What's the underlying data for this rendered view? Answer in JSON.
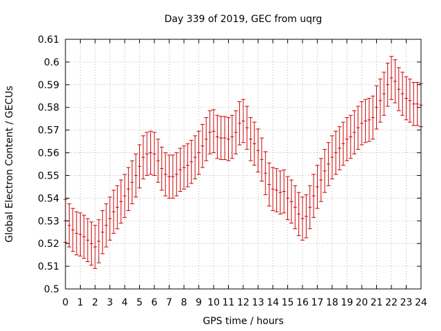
{
  "chart_data": {
    "type": "scatter",
    "title": "Day 339 of 2019, GEC from uqrg",
    "xlabel": "GPS time / hours",
    "ylabel": "Global Electron Content / GECUs",
    "xlim": [
      0,
      24
    ],
    "ylim": [
      0.5,
      0.61
    ],
    "x_ticks": [
      "0",
      "1",
      "2",
      "3",
      "4",
      "5",
      "6",
      "7",
      "8",
      "9",
      "10",
      "11",
      "12",
      "13",
      "14",
      "15",
      "16",
      "17",
      "18",
      "19",
      "20",
      "21",
      "22",
      "23",
      "24"
    ],
    "y_ticks": [
      "0.5",
      "0.51",
      "0.52",
      "0.53",
      "0.54",
      "0.55",
      "0.56",
      "0.57",
      "0.58",
      "0.59",
      "0.6",
      "0.61"
    ],
    "grid": true,
    "error_bar_color": "#cc0000",
    "series": [
      {
        "error": 0.0095,
        "points": [
          [
            0.0,
            0.53
          ],
          [
            0.25,
            0.528
          ],
          [
            0.5,
            0.526
          ],
          [
            0.75,
            0.5245
          ],
          [
            1.0,
            0.524
          ],
          [
            1.25,
            0.523
          ],
          [
            1.5,
            0.5215
          ],
          [
            1.75,
            0.52
          ],
          [
            2.0,
            0.5185
          ],
          [
            2.25,
            0.521
          ],
          [
            2.5,
            0.525
          ],
          [
            2.75,
            0.528
          ],
          [
            3.0,
            0.531
          ],
          [
            3.25,
            0.534
          ],
          [
            3.5,
            0.536
          ],
          [
            3.75,
            0.5385
          ],
          [
            4.0,
            0.541
          ],
          [
            4.25,
            0.544
          ],
          [
            4.5,
            0.547
          ],
          [
            4.75,
            0.55
          ],
          [
            5.0,
            0.554
          ],
          [
            5.25,
            0.558
          ],
          [
            5.5,
            0.5595
          ],
          [
            5.75,
            0.56
          ],
          [
            6.0,
            0.5595
          ],
          [
            6.25,
            0.5565
          ],
          [
            6.5,
            0.553
          ],
          [
            6.75,
            0.5505
          ],
          [
            7.0,
            0.5495
          ],
          [
            7.25,
            0.5495
          ],
          [
            7.5,
            0.5505
          ],
          [
            7.75,
            0.5525
          ],
          [
            8.0,
            0.5535
          ],
          [
            8.25,
            0.5545
          ],
          [
            8.5,
            0.556
          ],
          [
            8.75,
            0.558
          ],
          [
            9.0,
            0.56
          ],
          [
            9.25,
            0.563
          ],
          [
            9.5,
            0.566
          ],
          [
            9.75,
            0.569
          ],
          [
            10.0,
            0.5695
          ],
          [
            10.25,
            0.567
          ],
          [
            10.5,
            0.5665
          ],
          [
            10.75,
            0.5665
          ],
          [
            11.0,
            0.566
          ],
          [
            11.25,
            0.567
          ],
          [
            11.5,
            0.569
          ],
          [
            11.75,
            0.573
          ],
          [
            12.0,
            0.574
          ],
          [
            12.25,
            0.571
          ],
          [
            12.5,
            0.566
          ],
          [
            12.75,
            0.564
          ],
          [
            13.0,
            0.561
          ],
          [
            13.25,
            0.557
          ],
          [
            13.5,
            0.551
          ],
          [
            13.75,
            0.546
          ],
          [
            14.0,
            0.544
          ],
          [
            14.25,
            0.5435
          ],
          [
            14.5,
            0.5425
          ],
          [
            14.75,
            0.543
          ],
          [
            15.0,
            0.54
          ],
          [
            15.25,
            0.5385
          ],
          [
            15.5,
            0.536
          ],
          [
            15.75,
            0.533
          ],
          [
            16.0,
            0.531
          ],
          [
            16.25,
            0.532
          ],
          [
            16.5,
            0.536
          ],
          [
            16.75,
            0.541
          ],
          [
            17.0,
            0.545
          ],
          [
            17.25,
            0.548
          ],
          [
            17.5,
            0.552
          ],
          [
            17.75,
            0.555
          ],
          [
            18.0,
            0.558
          ],
          [
            18.25,
            0.56
          ],
          [
            18.5,
            0.562
          ],
          [
            18.75,
            0.564
          ],
          [
            19.0,
            0.566
          ],
          [
            19.25,
            0.567
          ],
          [
            19.5,
            0.569
          ],
          [
            19.75,
            0.571
          ],
          [
            20.0,
            0.573
          ],
          [
            20.25,
            0.574
          ],
          [
            20.5,
            0.5745
          ],
          [
            20.75,
            0.5755
          ],
          [
            21.0,
            0.58
          ],
          [
            21.25,
            0.583
          ],
          [
            21.5,
            0.586
          ],
          [
            21.75,
            0.59
          ],
          [
            22.0,
            0.593
          ],
          [
            22.25,
            0.5915
          ],
          [
            22.5,
            0.588
          ],
          [
            22.75,
            0.586
          ],
          [
            23.0,
            0.584
          ],
          [
            23.25,
            0.583
          ],
          [
            23.5,
            0.5815
          ],
          [
            23.75,
            0.5815
          ],
          [
            24.0,
            0.581
          ]
        ]
      }
    ]
  }
}
